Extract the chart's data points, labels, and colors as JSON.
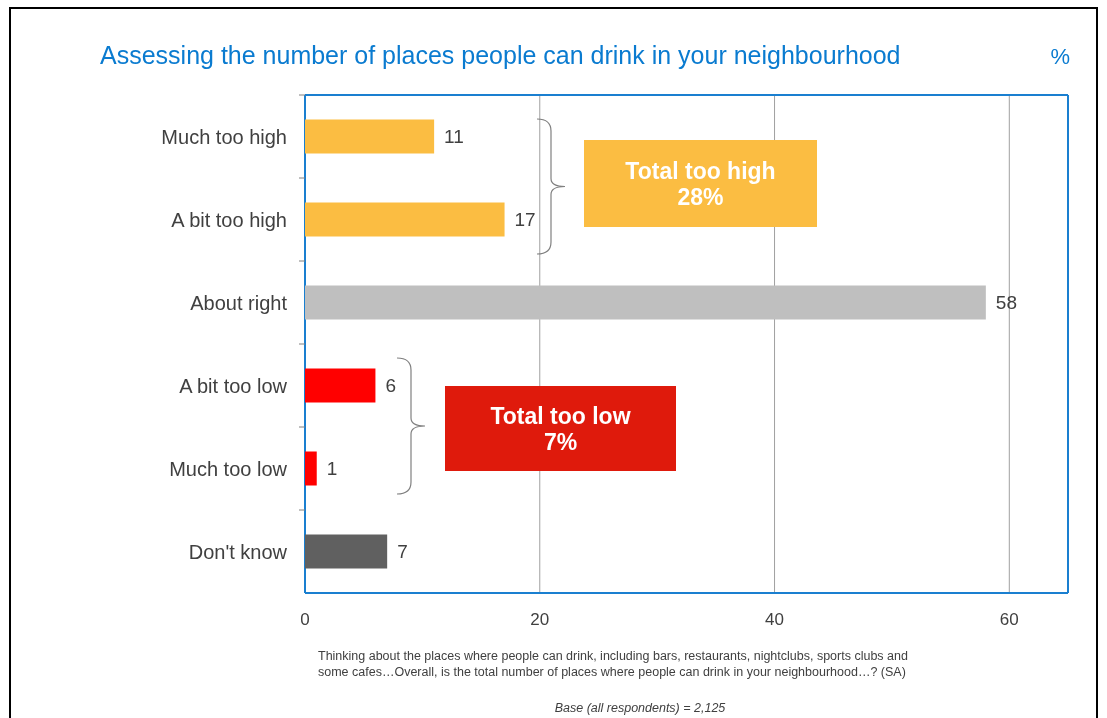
{
  "chart_data": {
    "type": "bar",
    "orientation": "horizontal",
    "title": "Assessing the number of places people can drink in your neighbourhood",
    "subtitle": "%",
    "categories": [
      "Much too high",
      "A bit too high",
      "About right",
      "A bit too low",
      "Much too low",
      "Don't know"
    ],
    "values": [
      11,
      17,
      58,
      6,
      1,
      7
    ],
    "colors": [
      "#fbbd42",
      "#fbbd42",
      "#bfbfbf",
      "#ff0000",
      "#ff0000",
      "#606060"
    ],
    "xlim": [
      0,
      65
    ],
    "xticks": [
      0,
      20,
      40,
      60
    ],
    "grid": "x",
    "data_labels": true,
    "annotations": [
      "Total too high\n28%",
      "Total too low\n7%",
      "Thinking about the places where people can drink, including bars, restaurants, nightclubs, sports clubs and\nsome cafes…Overall, is the total number of places where people can drink in your neighbourhood…? (SA)",
      "Base (all respondents) = 2,125"
    ]
  }
}
